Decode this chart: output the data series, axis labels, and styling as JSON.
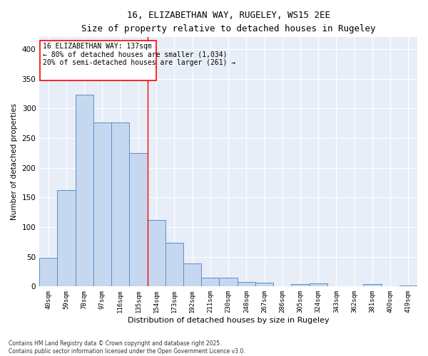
{
  "title": "16, ELIZABETHAN WAY, RUGELEY, WS15 2EE",
  "subtitle": "Size of property relative to detached houses in Rugeley",
  "xlabel": "Distribution of detached houses by size in Rugeley",
  "ylabel": "Number of detached properties",
  "bar_color": "#c5d8f0",
  "bar_edge_color": "#5b8ec4",
  "background_color": "#e8eef8",
  "annotation_title": "16 ELIZABETHAN WAY: 137sqm",
  "annotation_line1": "← 80% of detached houses are smaller (1,034)",
  "annotation_line2": "20% of semi-detached houses are larger (261) →",
  "categories": [
    "40sqm",
    "59sqm",
    "78sqm",
    "97sqm",
    "116sqm",
    "135sqm",
    "154sqm",
    "173sqm",
    "192sqm",
    "211sqm",
    "230sqm",
    "248sqm",
    "267sqm",
    "286sqm",
    "305sqm",
    "324sqm",
    "343sqm",
    "362sqm",
    "381sqm",
    "400sqm",
    "419sqm"
  ],
  "values": [
    48,
    163,
    323,
    277,
    277,
    225,
    112,
    74,
    39,
    15,
    15,
    8,
    7,
    0,
    4,
    5,
    0,
    0,
    4,
    0,
    2
  ],
  "ylim": [
    0,
    420
  ],
  "yticks": [
    0,
    50,
    100,
    150,
    200,
    250,
    300,
    350,
    400
  ],
  "vline_index": 5,
  "footer1": "Contains HM Land Registry data © Crown copyright and database right 2025.",
  "footer2": "Contains public sector information licensed under the Open Government Licence v3.0."
}
